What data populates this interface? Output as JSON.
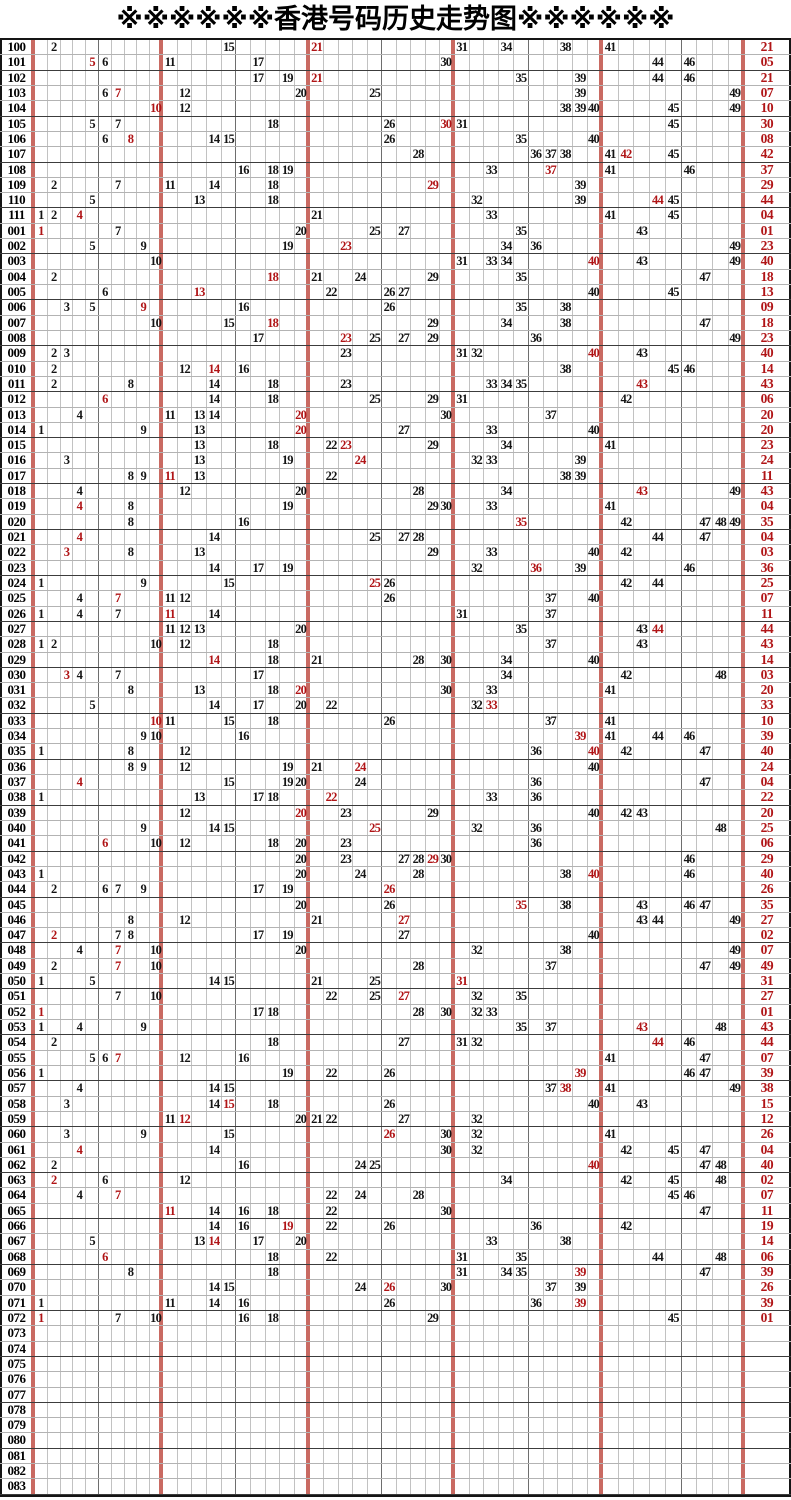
{
  "title": "※※※※※※香港号码历史走势图※※※※※※",
  "colors": {
    "red_number": "#b01416",
    "red_separator_line": "#c96a62",
    "grid_line_light": "#c2c2c2",
    "grid_line_dark": "#6e6e6e",
    "outer_border": "#151515"
  },
  "chart_data": {
    "type": "table",
    "title": "※※※※※※香港号码历史走势图※※※※※※",
    "columns": {
      "number_min": 1,
      "number_max": 49,
      "red_separators_after_columns": [
        10,
        20,
        30,
        40,
        49
      ]
    },
    "row_format": "p = period label (left column), n = drawn numbers plotted in their numbered column, r = numbers printed in red within grid, s = special number shown in red right column",
    "rows": [
      {
        "p": "100",
        "n": [
          2,
          15,
          21,
          31,
          34,
          38,
          41
        ],
        "r": [
          21
        ],
        "s": "21"
      },
      {
        "p": "101",
        "n": [
          5,
          6,
          11,
          17,
          30,
          44,
          46
        ],
        "r": [
          5
        ],
        "s": "05"
      },
      {
        "p": "102",
        "n": [
          17,
          19,
          21,
          35,
          39,
          44,
          46
        ],
        "r": [
          21
        ],
        "s": "21"
      },
      {
        "p": "103",
        "n": [
          6,
          7,
          12,
          20,
          25,
          39,
          49
        ],
        "r": [
          7
        ],
        "s": "07"
      },
      {
        "p": "104",
        "n": [
          10,
          12,
          38,
          39,
          40,
          45,
          49
        ],
        "r": [
          10
        ],
        "s": "10"
      },
      {
        "p": "105",
        "n": [
          5,
          7,
          18,
          26,
          30,
          31,
          45
        ],
        "r": [
          30
        ],
        "s": "30"
      },
      {
        "p": "106",
        "n": [
          6,
          8,
          14,
          15,
          26,
          35,
          40
        ],
        "r": [
          8
        ],
        "s": "08"
      },
      {
        "p": "107",
        "n": [
          28,
          36,
          37,
          38,
          41,
          42,
          45
        ],
        "r": [
          42
        ],
        "s": "42"
      },
      {
        "p": "108",
        "n": [
          16,
          18,
          19,
          33,
          37,
          41,
          46
        ],
        "r": [
          37
        ],
        "s": "37"
      },
      {
        "p": "109",
        "n": [
          2,
          7,
          11,
          14,
          18,
          29,
          39
        ],
        "r": [
          29
        ],
        "s": "29"
      },
      {
        "p": "110",
        "n": [
          5,
          13,
          18,
          32,
          39,
          44,
          45
        ],
        "r": [
          44
        ],
        "s": "44"
      },
      {
        "p": "111",
        "n": [
          1,
          2,
          4,
          21,
          33,
          41,
          45
        ],
        "r": [
          4
        ],
        "s": "04"
      },
      {
        "p": "001",
        "n": [
          1,
          7,
          20,
          25,
          27,
          35,
          43
        ],
        "r": [
          1
        ],
        "s": "01"
      },
      {
        "p": "002",
        "n": [
          5,
          9,
          19,
          23,
          34,
          36,
          49
        ],
        "r": [
          23
        ],
        "s": "23"
      },
      {
        "p": "003",
        "n": [
          10,
          31,
          33,
          34,
          40,
          43,
          49
        ],
        "r": [
          40
        ],
        "s": "40"
      },
      {
        "p": "004",
        "n": [
          2,
          18,
          21,
          24,
          29,
          35,
          47
        ],
        "r": [
          18
        ],
        "s": "18"
      },
      {
        "p": "005",
        "n": [
          6,
          13,
          22,
          26,
          27,
          40,
          45
        ],
        "r": [
          13
        ],
        "s": "13"
      },
      {
        "p": "006",
        "n": [
          3,
          5,
          9,
          16,
          26,
          35,
          38
        ],
        "r": [
          9
        ],
        "s": "09"
      },
      {
        "p": "007",
        "n": [
          10,
          15,
          18,
          29,
          34,
          38,
          47
        ],
        "r": [
          18
        ],
        "s": "18"
      },
      {
        "p": "008",
        "n": [
          17,
          23,
          25,
          27,
          29,
          36,
          49
        ],
        "r": [
          23
        ],
        "s": "23"
      },
      {
        "p": "009",
        "n": [
          2,
          3,
          23,
          31,
          32,
          40,
          43
        ],
        "r": [
          40
        ],
        "s": "40"
      },
      {
        "p": "010",
        "n": [
          2,
          12,
          14,
          16,
          38,
          45,
          46
        ],
        "r": [
          14
        ],
        "s": "14"
      },
      {
        "p": "011",
        "n": [
          2,
          8,
          14,
          18,
          23,
          33,
          34,
          35,
          43
        ],
        "r": [
          43
        ],
        "s": "43"
      },
      {
        "p": "012",
        "n": [
          6,
          14,
          18,
          25,
          29,
          31,
          42
        ],
        "r": [
          6
        ],
        "s": "06"
      },
      {
        "p": "013",
        "n": [
          4,
          11,
          13,
          14,
          20,
          30,
          37
        ],
        "r": [
          20
        ],
        "s": "20"
      },
      {
        "p": "014",
        "n": [
          1,
          9,
          13,
          20,
          27,
          33,
          40
        ],
        "r": [
          20
        ],
        "s": "20"
      },
      {
        "p": "015",
        "n": [
          13,
          18,
          22,
          23,
          29,
          34,
          41
        ],
        "r": [
          23
        ],
        "s": "23"
      },
      {
        "p": "016",
        "n": [
          3,
          13,
          19,
          24,
          32,
          33,
          39
        ],
        "r": [
          24
        ],
        "s": "24"
      },
      {
        "p": "017",
        "n": [
          8,
          9,
          11,
          13,
          22,
          38,
          39
        ],
        "r": [
          11
        ],
        "s": "11"
      },
      {
        "p": "018",
        "n": [
          4,
          12,
          20,
          28,
          34,
          43,
          49
        ],
        "r": [
          43
        ],
        "s": "43"
      },
      {
        "p": "019",
        "n": [
          4,
          8,
          19,
          29,
          30,
          33,
          41
        ],
        "r": [
          4
        ],
        "s": "04"
      },
      {
        "p": "020",
        "n": [
          8,
          16,
          35,
          42,
          47,
          48,
          49
        ],
        "r": [
          35
        ],
        "s": "35"
      },
      {
        "p": "021",
        "n": [
          4,
          14,
          25,
          27,
          28,
          44,
          47
        ],
        "r": [
          4
        ],
        "s": "04"
      },
      {
        "p": "022",
        "n": [
          3,
          8,
          13,
          29,
          33,
          40,
          42
        ],
        "r": [
          3
        ],
        "s": "03"
      },
      {
        "p": "023",
        "n": [
          14,
          17,
          19,
          32,
          36,
          39,
          46
        ],
        "r": [
          36
        ],
        "s": "36"
      },
      {
        "p": "024",
        "n": [
          1,
          9,
          15,
          25,
          26,
          42,
          44
        ],
        "r": [
          25
        ],
        "s": "25"
      },
      {
        "p": "025",
        "n": [
          4,
          7,
          11,
          12,
          26,
          37,
          40
        ],
        "r": [
          7
        ],
        "s": "07"
      },
      {
        "p": "026",
        "n": [
          1,
          4,
          7,
          11,
          14,
          31,
          37
        ],
        "r": [
          11
        ],
        "s": "11"
      },
      {
        "p": "027",
        "n": [
          11,
          12,
          13,
          20,
          35,
          43,
          44
        ],
        "r": [
          44
        ],
        "s": "44"
      },
      {
        "p": "028",
        "n": [
          1,
          2,
          10,
          12,
          18,
          37,
          43
        ],
        "r": [],
        "s": "43"
      },
      {
        "p": "029",
        "n": [
          14,
          18,
          21,
          28,
          30,
          34,
          40
        ],
        "r": [
          14
        ],
        "s": "14"
      },
      {
        "p": "030",
        "n": [
          3,
          4,
          7,
          17,
          34,
          42,
          48
        ],
        "r": [
          3
        ],
        "s": "03"
      },
      {
        "p": "031",
        "n": [
          8,
          13,
          18,
          20,
          30,
          33,
          41
        ],
        "r": [
          20
        ],
        "s": "20"
      },
      {
        "p": "032",
        "n": [
          5,
          14,
          17,
          20,
          22,
          32,
          33
        ],
        "r": [
          33
        ],
        "s": "33"
      },
      {
        "p": "033",
        "n": [
          10,
          11,
          15,
          18,
          26,
          37,
          41
        ],
        "r": [
          10
        ],
        "s": "10"
      },
      {
        "p": "034",
        "n": [
          9,
          10,
          16,
          39,
          41,
          44,
          46
        ],
        "r": [
          39
        ],
        "s": "39"
      },
      {
        "p": "035",
        "n": [
          1,
          8,
          12,
          36,
          40,
          42,
          47
        ],
        "r": [
          40
        ],
        "s": "40"
      },
      {
        "p": "036",
        "n": [
          8,
          9,
          12,
          19,
          21,
          24,
          40
        ],
        "r": [
          24
        ],
        "s": "24"
      },
      {
        "p": "037",
        "n": [
          4,
          15,
          19,
          20,
          24,
          36,
          47
        ],
        "r": [
          4
        ],
        "s": "04"
      },
      {
        "p": "038",
        "n": [
          1,
          13,
          17,
          18,
          22,
          33,
          36
        ],
        "r": [
          22
        ],
        "s": "22"
      },
      {
        "p": "039",
        "n": [
          12,
          20,
          23,
          29,
          40,
          42,
          43
        ],
        "r": [
          20
        ],
        "s": "20"
      },
      {
        "p": "040",
        "n": [
          9,
          14,
          15,
          25,
          32,
          36,
          48
        ],
        "r": [
          25
        ],
        "s": "25"
      },
      {
        "p": "041",
        "n": [
          6,
          10,
          12,
          18,
          20,
          23,
          36
        ],
        "r": [
          6
        ],
        "s": "06"
      },
      {
        "p": "042",
        "n": [
          20,
          23,
          27,
          28,
          29,
          30,
          46
        ],
        "r": [
          29
        ],
        "s": "29"
      },
      {
        "p": "043",
        "n": [
          1,
          20,
          24,
          28,
          38,
          40,
          46
        ],
        "r": [
          40
        ],
        "s": "40"
      },
      {
        "p": "044",
        "n": [
          2,
          6,
          7,
          9,
          17,
          19,
          26
        ],
        "r": [
          26
        ],
        "s": "26"
      },
      {
        "p": "045",
        "n": [
          20,
          26,
          35,
          38,
          43,
          46,
          47
        ],
        "r": [
          35
        ],
        "s": "35"
      },
      {
        "p": "046",
        "n": [
          8,
          12,
          21,
          27,
          43,
          44,
          49
        ],
        "r": [
          27
        ],
        "s": "27"
      },
      {
        "p": "047",
        "n": [
          2,
          7,
          8,
          17,
          19,
          27,
          40
        ],
        "r": [
          2
        ],
        "s": "02"
      },
      {
        "p": "048",
        "n": [
          4,
          7,
          10,
          20,
          32,
          38,
          49
        ],
        "r": [
          7
        ],
        "s": "07"
      },
      {
        "p": "049",
        "n": [
          2,
          7,
          10,
          28,
          37,
          47,
          49
        ],
        "r": [
          7
        ],
        "s": "49"
      },
      {
        "p": "050",
        "n": [
          1,
          5,
          14,
          15,
          21,
          25,
          31
        ],
        "r": [
          31
        ],
        "s": "31"
      },
      {
        "p": "051",
        "n": [
          7,
          10,
          22,
          25,
          27,
          32,
          35
        ],
        "r": [
          27
        ],
        "s": "27"
      },
      {
        "p": "052",
        "n": [
          1,
          17,
          18,
          28,
          30,
          32,
          33
        ],
        "r": [
          1
        ],
        "s": "01"
      },
      {
        "p": "053",
        "n": [
          1,
          4,
          9,
          35,
          37,
          43,
          48
        ],
        "r": [
          43
        ],
        "s": "43"
      },
      {
        "p": "054",
        "n": [
          2,
          18,
          27,
          31,
          32,
          44,
          46
        ],
        "r": [
          44
        ],
        "s": "44"
      },
      {
        "p": "055",
        "n": [
          5,
          6,
          7,
          12,
          16,
          41,
          47
        ],
        "r": [
          7
        ],
        "s": "07"
      },
      {
        "p": "056",
        "n": [
          1,
          19,
          22,
          26,
          39,
          46,
          47
        ],
        "r": [
          39
        ],
        "s": "39"
      },
      {
        "p": "057",
        "n": [
          4,
          14,
          15,
          37,
          38,
          41,
          49
        ],
        "r": [
          38
        ],
        "s": "38"
      },
      {
        "p": "058",
        "n": [
          3,
          14,
          15,
          18,
          26,
          40,
          43
        ],
        "r": [
          15
        ],
        "s": "15"
      },
      {
        "p": "059",
        "n": [
          11,
          12,
          20,
          21,
          22,
          27,
          32
        ],
        "r": [
          12
        ],
        "s": "12"
      },
      {
        "p": "060",
        "n": [
          3,
          9,
          15,
          26,
          30,
          32,
          41
        ],
        "r": [
          26
        ],
        "s": "26"
      },
      {
        "p": "061",
        "n": [
          4,
          14,
          30,
          32,
          42,
          45,
          47
        ],
        "r": [
          4
        ],
        "s": "04"
      },
      {
        "p": "062",
        "n": [
          2,
          16,
          24,
          25,
          40,
          47,
          48
        ],
        "r": [
          40
        ],
        "s": "40"
      },
      {
        "p": "063",
        "n": [
          2,
          6,
          12,
          34,
          42,
          45,
          48
        ],
        "r": [
          2
        ],
        "s": "02"
      },
      {
        "p": "064",
        "n": [
          4,
          7,
          22,
          24,
          28,
          45,
          46
        ],
        "r": [
          7
        ],
        "s": "07"
      },
      {
        "p": "065",
        "n": [
          11,
          14,
          16,
          18,
          22,
          30,
          47
        ],
        "r": [
          11
        ],
        "s": "11"
      },
      {
        "p": "066",
        "n": [
          14,
          16,
          19,
          22,
          26,
          36,
          42
        ],
        "r": [
          19
        ],
        "s": "19"
      },
      {
        "p": "067",
        "n": [
          5,
          13,
          14,
          17,
          20,
          33,
          38
        ],
        "r": [
          14
        ],
        "s": "14"
      },
      {
        "p": "068",
        "n": [
          6,
          18,
          22,
          31,
          35,
          44,
          48
        ],
        "r": [
          6
        ],
        "s": "06"
      },
      {
        "p": "069",
        "n": [
          8,
          18,
          31,
          34,
          35,
          39,
          47
        ],
        "r": [
          39
        ],
        "s": "39"
      },
      {
        "p": "070",
        "n": [
          14,
          15,
          24,
          26,
          30,
          37,
          39
        ],
        "r": [
          26
        ],
        "s": "26"
      },
      {
        "p": "071",
        "n": [
          1,
          11,
          14,
          16,
          26,
          36,
          39
        ],
        "r": [
          39
        ],
        "s": "39"
      },
      {
        "p": "072",
        "n": [
          1,
          7,
          10,
          16,
          18,
          29,
          45
        ],
        "r": [
          1
        ],
        "s": "01"
      },
      {
        "p": "073",
        "n": [],
        "r": [],
        "s": ""
      },
      {
        "p": "074",
        "n": [],
        "r": [],
        "s": ""
      },
      {
        "p": "075",
        "n": [],
        "r": [],
        "s": ""
      },
      {
        "p": "076",
        "n": [],
        "r": [],
        "s": ""
      },
      {
        "p": "077",
        "n": [],
        "r": [],
        "s": ""
      },
      {
        "p": "078",
        "n": [],
        "r": [],
        "s": ""
      },
      {
        "p": "079",
        "n": [],
        "r": [],
        "s": ""
      },
      {
        "p": "080",
        "n": [],
        "r": [],
        "s": ""
      },
      {
        "p": "081",
        "n": [],
        "r": [],
        "s": ""
      },
      {
        "p": "082",
        "n": [],
        "r": [],
        "s": ""
      },
      {
        "p": "083",
        "n": [],
        "r": [],
        "s": ""
      }
    ]
  }
}
